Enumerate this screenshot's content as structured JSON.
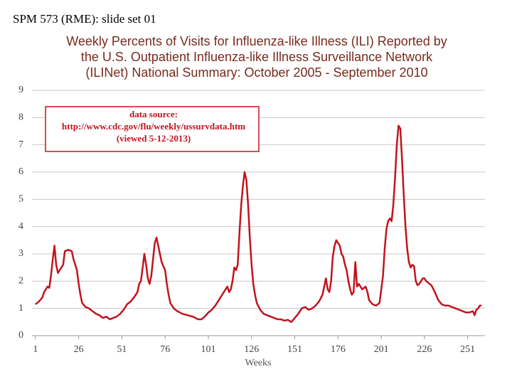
{
  "header": "SPM 573 (RME): slide set 01",
  "chart_data": {
    "type": "line",
    "title": [
      "Weekly Percents of Visits  for Influenza-like Illness (ILI) Reported by",
      "the U.S. Outpatient Influenza-like Illness Surveillance  Network",
      "(ILINet) National Summary: October 2005 - September 2010"
    ],
    "annotation": [
      "data source:",
      "http://www.cdc.gov/flu/weekly/ussurvdata.htm",
      "(viewed 5-12-2013)"
    ],
    "xlabel": "Weeks",
    "color": "#c0141e",
    "grid": true,
    "xlim": [
      -1,
      261
    ],
    "xticks": [
      1,
      26,
      51,
      76,
      101,
      126,
      151,
      176,
      201,
      226,
      251
    ],
    "ylim": [
      0,
      9
    ],
    "yticks": [
      0,
      1,
      2,
      3,
      4,
      5,
      6,
      7,
      8,
      9
    ],
    "x": [
      1,
      3,
      5,
      6,
      8,
      9,
      10,
      11,
      12,
      13,
      14,
      15,
      16,
      17,
      18,
      20,
      22,
      23,
      24,
      25,
      26,
      27,
      28,
      30,
      32,
      34,
      36,
      38,
      40,
      42,
      44,
      46,
      48,
      50,
      52,
      54,
      56,
      58,
      60,
      61,
      62,
      63,
      64,
      65,
      66,
      67,
      68,
      69,
      70,
      71,
      72,
      73,
      74,
      76,
      77,
      78,
      79,
      81,
      83,
      86,
      89,
      92,
      95,
      97,
      99,
      101,
      103,
      105,
      107,
      109,
      111,
      112,
      113,
      114,
      115,
      116,
      117,
      118,
      119,
      120,
      121,
      122,
      123,
      124,
      125,
      126,
      127,
      128,
      129,
      131,
      133,
      135,
      137,
      139,
      141,
      143,
      145,
      147,
      149,
      151,
      153,
      155,
      157,
      159,
      161,
      163,
      165,
      167,
      169,
      170,
      171,
      172,
      173,
      174,
      175,
      176,
      177,
      178,
      179,
      180,
      181,
      182,
      183,
      184,
      185,
      186,
      187,
      188,
      189,
      190,
      191,
      192,
      193,
      194,
      196,
      198,
      200,
      202,
      203,
      204,
      205,
      206,
      207,
      208,
      209,
      210,
      211,
      212,
      213,
      214,
      215,
      216,
      217,
      218,
      219,
      220,
      221,
      222,
      223,
      224,
      225,
      226,
      227,
      228,
      230,
      232,
      234,
      236,
      238,
      240,
      242,
      244,
      246,
      248,
      250,
      252,
      254,
      255,
      256,
      257,
      258,
      259
    ],
    "values": [
      1.15,
      1.25,
      1.4,
      1.6,
      1.8,
      1.75,
      2.2,
      2.8,
      3.3,
      2.6,
      2.3,
      2.4,
      2.5,
      2.6,
      3.1,
      3.15,
      3.1,
      2.8,
      2.6,
      2.4,
      1.9,
      1.5,
      1.2,
      1.05,
      1.0,
      0.9,
      0.8,
      0.75,
      0.65,
      0.7,
      0.6,
      0.65,
      0.7,
      0.8,
      0.95,
      1.15,
      1.25,
      1.4,
      1.6,
      1.9,
      2.0,
      2.5,
      3.0,
      2.6,
      2.1,
      1.9,
      2.2,
      2.8,
      3.4,
      3.6,
      3.3,
      3.0,
      2.7,
      2.4,
      1.9,
      1.5,
      1.2,
      1.0,
      0.9,
      0.8,
      0.75,
      0.7,
      0.6,
      0.6,
      0.7,
      0.85,
      0.95,
      1.1,
      1.3,
      1.5,
      1.7,
      1.8,
      1.6,
      1.7,
      2.0,
      2.5,
      2.4,
      2.6,
      3.8,
      4.8,
      5.5,
      6.0,
      5.7,
      4.8,
      3.6,
      2.6,
      1.9,
      1.5,
      1.2,
      0.95,
      0.8,
      0.75,
      0.7,
      0.65,
      0.6,
      0.6,
      0.55,
      0.58,
      0.5,
      0.65,
      0.8,
      1.0,
      1.05,
      0.95,
      1.0,
      1.1,
      1.25,
      1.5,
      2.1,
      1.7,
      1.6,
      2.0,
      2.9,
      3.3,
      3.5,
      3.4,
      3.3,
      3.0,
      2.9,
      2.6,
      2.4,
      2.0,
      1.7,
      1.5,
      1.6,
      2.7,
      1.8,
      1.9,
      1.8,
      1.7,
      1.75,
      1.8,
      1.6,
      1.3,
      1.15,
      1.1,
      1.2,
      2.2,
      3.2,
      3.9,
      4.2,
      4.3,
      4.2,
      4.8,
      5.8,
      7.0,
      7.7,
      7.6,
      6.5,
      5.2,
      4.0,
      3.2,
      2.7,
      2.5,
      2.6,
      2.55,
      2.0,
      1.85,
      1.9,
      2.0,
      2.1,
      2.1,
      2.0,
      1.95,
      1.85,
      1.6,
      1.3,
      1.15,
      1.1,
      1.1,
      1.05,
      1.0,
      0.95,
      0.9,
      0.85,
      0.85,
      0.9,
      0.75,
      0.95,
      1.0,
      1.1,
      1.1
    ]
  }
}
